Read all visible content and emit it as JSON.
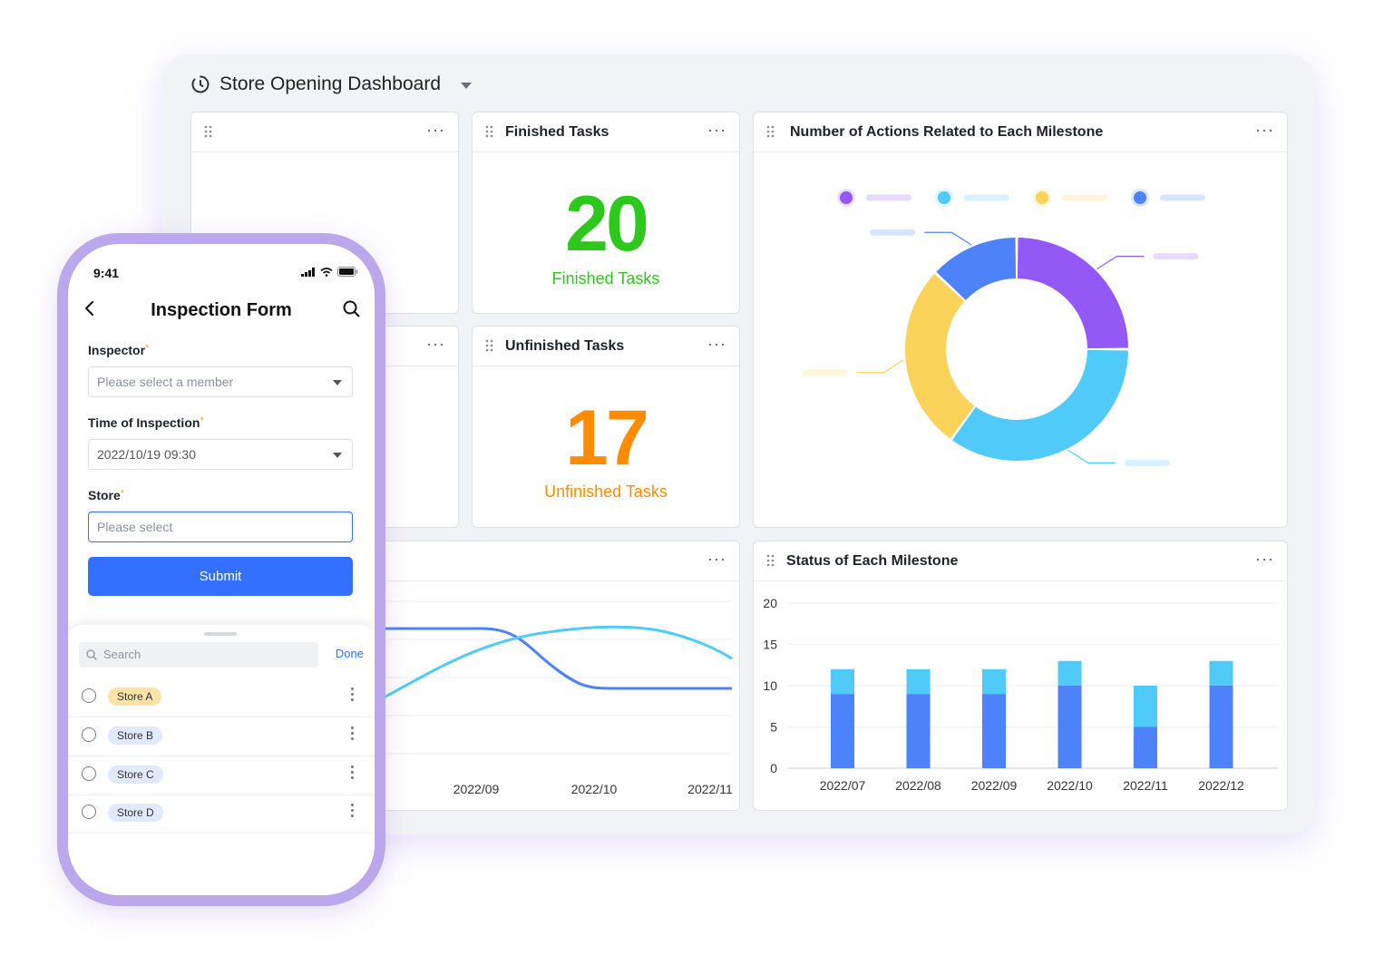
{
  "dashboard": {
    "title": "Store Opening Dashboard",
    "cards": {
      "finished": {
        "title": "Finished Tasks",
        "value": "20",
        "label": "Finished Tasks",
        "color": "#2ec71d"
      },
      "unfinished": {
        "title": "Unfinished Tasks",
        "value": "17",
        "label": "Unfinished Tasks",
        "color": "#ff8c00"
      },
      "milestone_actions": {
        "title": "Number of Actions Related to Each Milestone"
      },
      "milestone_status": {
        "title": "Status of Each Milestone"
      }
    },
    "more_label": "···"
  },
  "phone": {
    "status_time": "9:41",
    "form_title": "Inspection Form",
    "fields": {
      "inspector": {
        "label": "Inspector",
        "required": "*",
        "placeholder": "Please select a member"
      },
      "time": {
        "label": "Time of Inspection",
        "required": "*",
        "value": "2022/10/19 09:30"
      },
      "store": {
        "label": "Store",
        "required": "*",
        "placeholder": "Please select"
      }
    },
    "submit_label": "Submit",
    "picker": {
      "search_placeholder": "Search",
      "done_label": "Done",
      "options": [
        {
          "label": "Store A",
          "color": "#fae3a8"
        },
        {
          "label": "Store B",
          "color": "#e1e9fc"
        },
        {
          "label": "Store C",
          "color": "#e1e9fc"
        },
        {
          "label": "Store D",
          "color": "#e1e9fc"
        }
      ]
    }
  },
  "chart_data": [
    {
      "type": "pie",
      "title": "Number of Actions Related to Each Milestone",
      "values": [
        25,
        35,
        27,
        13
      ],
      "colors": [
        "#9458f6",
        "#4fcaf9",
        "#fbd35a",
        "#4d82fb"
      ],
      "legend_position": "top"
    },
    {
      "type": "bar",
      "title": "Status of Each Milestone",
      "categories": [
        "2022/07",
        "2022/08",
        "2022/09",
        "2022/10",
        "2022/11",
        "2022/12"
      ],
      "series": [
        {
          "values": [
            9,
            9,
            9,
            10,
            5,
            10
          ],
          "color": "#4d82fb"
        },
        {
          "values": [
            3,
            3,
            3,
            3,
            5,
            3
          ],
          "color": "#4fcaf9"
        }
      ],
      "yticks": [
        0,
        5,
        10,
        15,
        20
      ],
      "ylim": [
        0,
        20
      ],
      "grid": true
    },
    {
      "type": "line",
      "x_labels": [
        "2022/09",
        "2022/10",
        "2022/11"
      ],
      "series": [
        {
          "color": "#4d82fb"
        },
        {
          "color": "#4fcaf9"
        }
      ],
      "grid": true
    }
  ]
}
